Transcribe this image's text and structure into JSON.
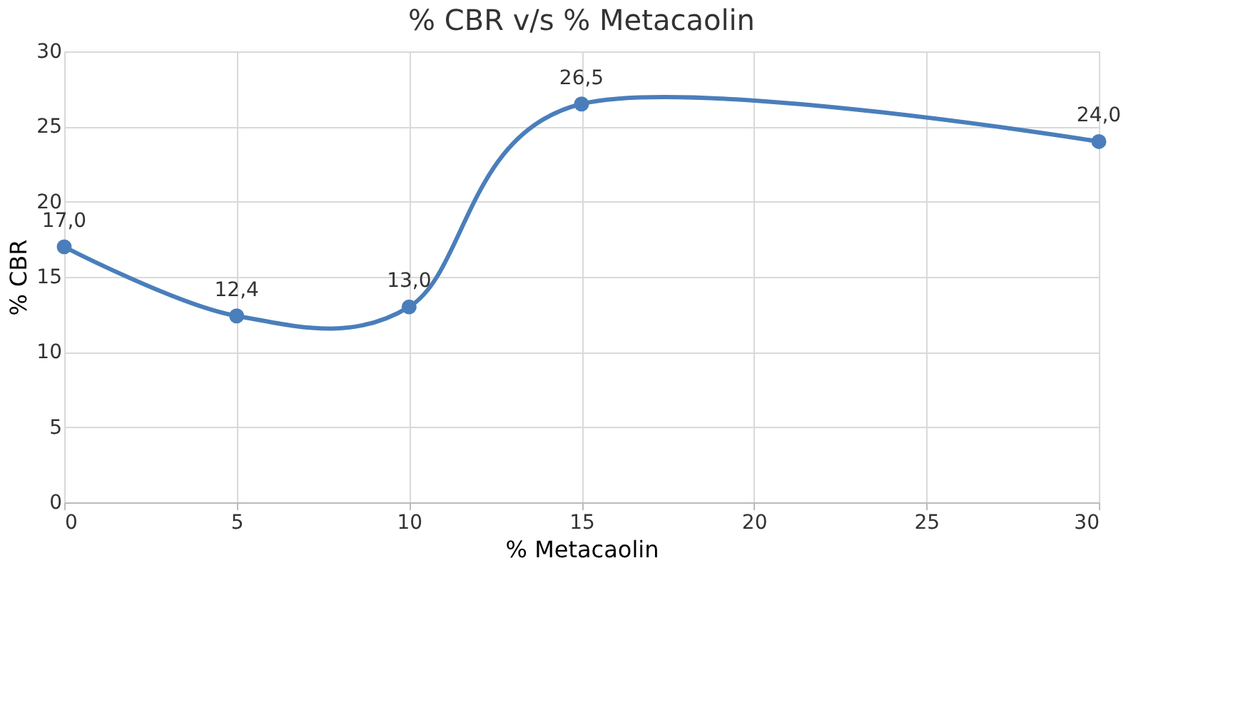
{
  "chart_data": {
    "type": "line",
    "title": "% CBR v/s % Metacaolin",
    "xlabel": "% Metacaolin",
    "ylabel": "% CBR",
    "x": [
      0,
      5,
      10,
      15,
      30
    ],
    "series": [
      {
        "color": "#4a7ebb",
        "values": [
          17.0,
          12.4,
          13.0,
          26.5,
          24.0
        ],
        "value_labels": [
          "17,0",
          "12,4",
          "13,0",
          "26,5",
          "24,0"
        ]
      }
    ],
    "xlim": [
      0,
      30
    ],
    "xticks": [
      0,
      5,
      10,
      15,
      20,
      25,
      30
    ],
    "ylim": [
      0,
      30
    ],
    "yticks": [
      0,
      5,
      10,
      15,
      20,
      25,
      30
    ],
    "grid": true,
    "marker": "circle",
    "line_style": "solid"
  }
}
